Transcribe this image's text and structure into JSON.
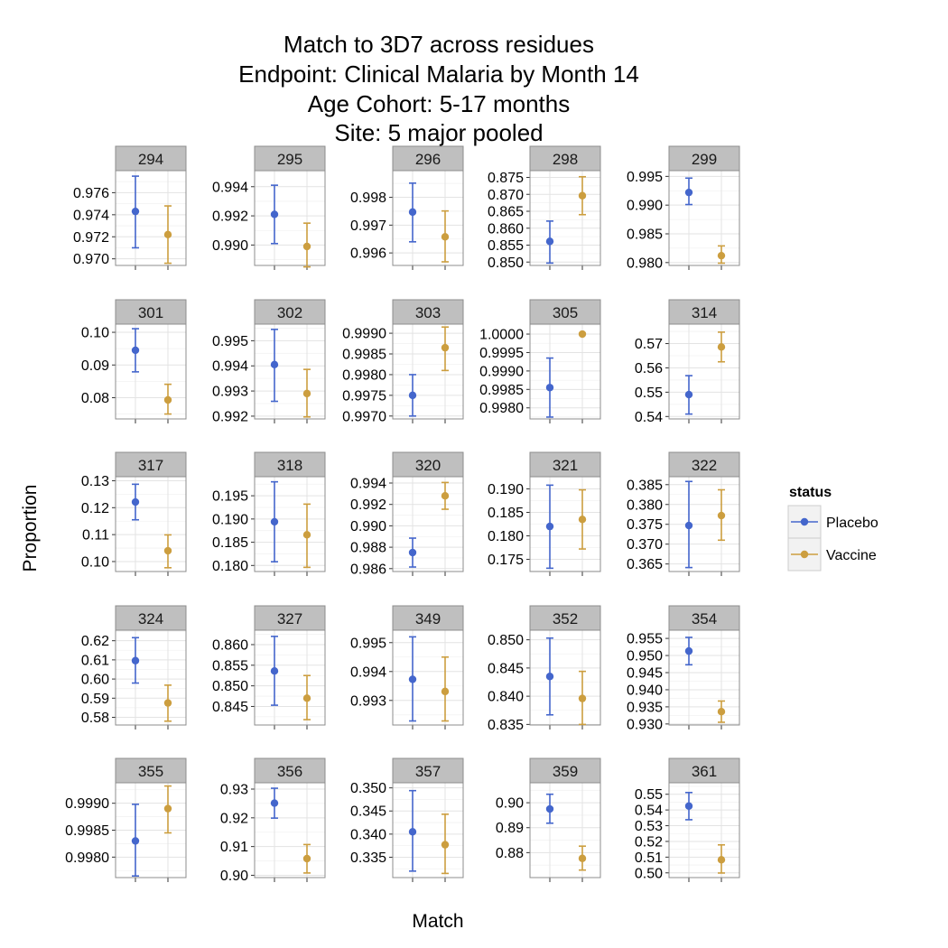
{
  "chart_data": {
    "type": "faceted-errorbar",
    "title_lines": [
      "Match to 3D7 across residues",
      "Endpoint: Clinical Malaria by Month 14",
      "Age Cohort: 5-17 months",
      "Site: 5 major pooled"
    ],
    "xlabel": "Match",
    "ylabel": "Proportion",
    "categories": [
      "Placebo",
      "Vaccine"
    ],
    "grid": true,
    "scales": "free_y",
    "legend": {
      "title": "status",
      "position": "right",
      "entries": [
        {
          "name": "Placebo",
          "color": "#4466CC"
        },
        {
          "name": "Vaccine",
          "color": "#CC9E3F"
        }
      ]
    },
    "panels": [
      {
        "label": "294",
        "ylim": [
          0.9694,
          0.978
        ],
        "yticks": [
          "0.970",
          "0.972",
          "0.974",
          "0.976"
        ],
        "placebo": {
          "y": 0.9743,
          "lo": 0.971,
          "hi": 0.9775
        },
        "vaccine": {
          "y": 0.9722,
          "lo": 0.9696,
          "hi": 0.9748
        }
      },
      {
        "label": "295",
        "ylim": [
          0.9886,
          0.9951
        ],
        "yticks": [
          "0.990",
          "0.992",
          "0.994"
        ],
        "placebo": {
          "y": 0.9921,
          "lo": 0.9901,
          "hi": 0.9941
        },
        "vaccine": {
          "y": 0.9899,
          "lo": 0.9885,
          "hi": 0.9915
        }
      },
      {
        "label": "296",
        "ylim": [
          0.99555,
          0.99896
        ],
        "yticks": [
          "0.996",
          "0.997",
          "0.998"
        ],
        "placebo": {
          "y": 0.99747,
          "lo": 0.9964,
          "hi": 0.99851
        },
        "vaccine": {
          "y": 0.99658,
          "lo": 0.99568,
          "hi": 0.99751
        }
      },
      {
        "label": "298",
        "ylim": [
          0.849,
          0.877
        ],
        "yticks": [
          "0.850",
          "0.855",
          "0.860",
          "0.865",
          "0.870",
          "0.875"
        ],
        "placebo": {
          "y": 0.8561,
          "lo": 0.8497,
          "hi": 0.8621
        },
        "vaccine": {
          "y": 0.8696,
          "lo": 0.864,
          "hi": 0.8752
        }
      },
      {
        "label": "299",
        "ylim": [
          0.9795,
          0.996
        ],
        "yticks": [
          "0.980",
          "0.985",
          "0.990",
          "0.995"
        ],
        "placebo": {
          "y": 0.9922,
          "lo": 0.9901,
          "hi": 0.9947
        },
        "vaccine": {
          "y": 0.9812,
          "lo": 0.9799,
          "hi": 0.9829
        }
      },
      {
        "label": "301",
        "ylim": [
          0.0735,
          0.1025
        ],
        "yticks": [
          "0.08",
          "0.09",
          "0.10"
        ],
        "placebo": {
          "y": 0.0945,
          "lo": 0.0879,
          "hi": 0.1011
        },
        "vaccine": {
          "y": 0.0793,
          "lo": 0.075,
          "hi": 0.0841
        }
      },
      {
        "label": "302",
        "ylim": [
          0.99189,
          0.99566
        ],
        "yticks": [
          "0.992",
          "0.993",
          "0.994",
          "0.995"
        ],
        "placebo": {
          "y": 0.99405,
          "lo": 0.99259,
          "hi": 0.99545
        },
        "vaccine": {
          "y": 0.9929,
          "lo": 0.99197,
          "hi": 0.99386
        }
      },
      {
        "label": "303",
        "ylim": [
          0.99693,
          0.99922
        ],
        "yticks": [
          "0.9970",
          "0.9975",
          "0.9980",
          "0.9985",
          "0.9990"
        ],
        "placebo": {
          "y": 0.9975,
          "lo": 0.997,
          "hi": 0.998
        },
        "vaccine": {
          "y": 0.99865,
          "lo": 0.9981,
          "hi": 0.99915
        }
      },
      {
        "label": "305",
        "ylim": [
          0.9977,
          1.00027
        ],
        "yticks": [
          "0.9980",
          "0.9985",
          "0.9990",
          "0.9995",
          "1.0000"
        ],
        "placebo": {
          "y": 0.99855,
          "lo": 0.99775,
          "hi": 0.99935
        },
        "vaccine": {
          "y": 1.0,
          "lo": 1.0,
          "hi": 1.0
        }
      },
      {
        "label": "314",
        "ylim": [
          0.539,
          0.578
        ],
        "yticks": [
          "0.54",
          "0.55",
          "0.56",
          "0.57"
        ],
        "placebo": {
          "y": 0.549,
          "lo": 0.541,
          "hi": 0.5568
        },
        "vaccine": {
          "y": 0.5686,
          "lo": 0.5625,
          "hi": 0.5747
        }
      },
      {
        "label": "317",
        "ylim": [
          0.0963,
          0.1315
        ],
        "yticks": [
          "0.10",
          "0.11",
          "0.12",
          "0.13"
        ],
        "placebo": {
          "y": 0.1221,
          "lo": 0.1155,
          "hi": 0.1287
        },
        "vaccine": {
          "y": 0.104,
          "lo": 0.0977,
          "hi": 0.1099
        }
      },
      {
        "label": "318",
        "ylim": [
          0.1787,
          0.1991
        ],
        "yticks": [
          "0.180",
          "0.185",
          "0.190",
          "0.195"
        ],
        "placebo": {
          "y": 0.1894,
          "lo": 0.1808,
          "hi": 0.198
        },
        "vaccine": {
          "y": 0.1866,
          "lo": 0.1796,
          "hi": 0.1932
        }
      },
      {
        "label": "320",
        "ylim": [
          0.98573,
          0.99459
        ],
        "yticks": [
          "0.986",
          "0.988",
          "0.990",
          "0.992",
          "0.994"
        ],
        "placebo": {
          "y": 0.9875,
          "lo": 0.98615,
          "hi": 0.98885
        },
        "vaccine": {
          "y": 0.9928,
          "lo": 0.99155,
          "hi": 0.99405
        }
      },
      {
        "label": "321",
        "ylim": [
          0.1724,
          0.1926
        ],
        "yticks": [
          "0.175",
          "0.180",
          "0.185",
          "0.190"
        ],
        "placebo": {
          "y": 0.182,
          "lo": 0.1731,
          "hi": 0.1908
        },
        "vaccine": {
          "y": 0.1835,
          "lo": 0.1772,
          "hi": 0.1898
        }
      },
      {
        "label": "322",
        "ylim": [
          0.3631,
          0.387
        ],
        "yticks": [
          "0.365",
          "0.370",
          "0.375",
          "0.380",
          "0.385"
        ],
        "placebo": {
          "y": 0.3747,
          "lo": 0.3641,
          "hi": 0.3858
        },
        "vaccine": {
          "y": 0.3772,
          "lo": 0.371,
          "hi": 0.3837
        }
      },
      {
        "label": "324",
        "ylim": [
          0.576,
          0.6255
        ],
        "yticks": [
          "0.58",
          "0.59",
          "0.60",
          "0.61",
          "0.62"
        ],
        "placebo": {
          "y": 0.6096,
          "lo": 0.5979,
          "hi": 0.6216
        },
        "vaccine": {
          "y": 0.5875,
          "lo": 0.578,
          "hi": 0.5968
        }
      },
      {
        "label": "327",
        "ylim": [
          0.8405,
          0.8635
        ],
        "yticks": [
          "0.845",
          "0.850",
          "0.855",
          "0.860"
        ],
        "placebo": {
          "y": 0.8536,
          "lo": 0.8453,
          "hi": 0.862
        },
        "vaccine": {
          "y": 0.847,
          "lo": 0.8418,
          "hi": 0.8525
        }
      },
      {
        "label": "349",
        "ylim": [
          0.99215,
          0.99543
        ],
        "yticks": [
          "0.993",
          "0.994",
          "0.995"
        ],
        "placebo": {
          "y": 0.99373,
          "lo": 0.99229,
          "hi": 0.9952
        },
        "vaccine": {
          "y": 0.99331,
          "lo": 0.99229,
          "hi": 0.9945
        }
      },
      {
        "label": "352",
        "ylim": [
          0.8349,
          0.8517
        ],
        "yticks": [
          "0.835",
          "0.840",
          "0.845",
          "0.850"
        ],
        "placebo": {
          "y": 0.8435,
          "lo": 0.8367,
          "hi": 0.8503
        },
        "vaccine": {
          "y": 0.8396,
          "lo": 0.835,
          "hi": 0.8444
        }
      },
      {
        "label": "354",
        "ylim": [
          0.9297,
          0.9574
        ],
        "yticks": [
          "0.930",
          "0.935",
          "0.940",
          "0.945",
          "0.950",
          "0.955"
        ],
        "placebo": {
          "y": 0.9513,
          "lo": 0.9473,
          "hi": 0.9553
        },
        "vaccine": {
          "y": 0.9336,
          "lo": 0.9305,
          "hi": 0.9367
        }
      },
      {
        "label": "355",
        "ylim": [
          0.99762,
          0.99938
        ],
        "yticks": [
          "0.9980",
          "0.9985",
          "0.9990"
        ],
        "placebo": {
          "y": 0.9983,
          "lo": 0.99765,
          "hi": 0.99898
        },
        "vaccine": {
          "y": 0.9989,
          "lo": 0.99845,
          "hi": 0.99932
        }
      },
      {
        "label": "356",
        "ylim": [
          0.8992,
          0.9322
        ],
        "yticks": [
          "0.90",
          "0.91",
          "0.92",
          "0.93"
        ],
        "placebo": {
          "y": 0.9251,
          "lo": 0.9199,
          "hi": 0.9303
        },
        "vaccine": {
          "y": 0.9058,
          "lo": 0.9008,
          "hi": 0.9107
        }
      },
      {
        "label": "357",
        "ylim": [
          0.3306,
          0.3511
        ],
        "yticks": [
          "0.335",
          "0.340",
          "0.345",
          "0.350"
        ],
        "placebo": {
          "y": 0.3405,
          "lo": 0.332,
          "hi": 0.3494
        },
        "vaccine": {
          "y": 0.3377,
          "lo": 0.3315,
          "hi": 0.3443
        }
      },
      {
        "label": "359",
        "ylim": [
          0.87,
          0.908
        ],
        "yticks": [
          "0.88",
          "0.89",
          "0.90"
        ],
        "placebo": {
          "y": 0.8975,
          "lo": 0.8918,
          "hi": 0.9034
        },
        "vaccine": {
          "y": 0.8777,
          "lo": 0.873,
          "hi": 0.8826
        }
      },
      {
        "label": "361",
        "ylim": [
          0.497,
          0.5573
        ],
        "yticks": [
          "0.50",
          "0.51",
          "0.52",
          "0.53",
          "0.54",
          "0.55"
        ],
        "placebo": {
          "y": 0.5425,
          "lo": 0.5338,
          "hi": 0.5511
        },
        "vaccine": {
          "y": 0.5083,
          "lo": 0.4999,
          "hi": 0.5178
        }
      }
    ]
  }
}
